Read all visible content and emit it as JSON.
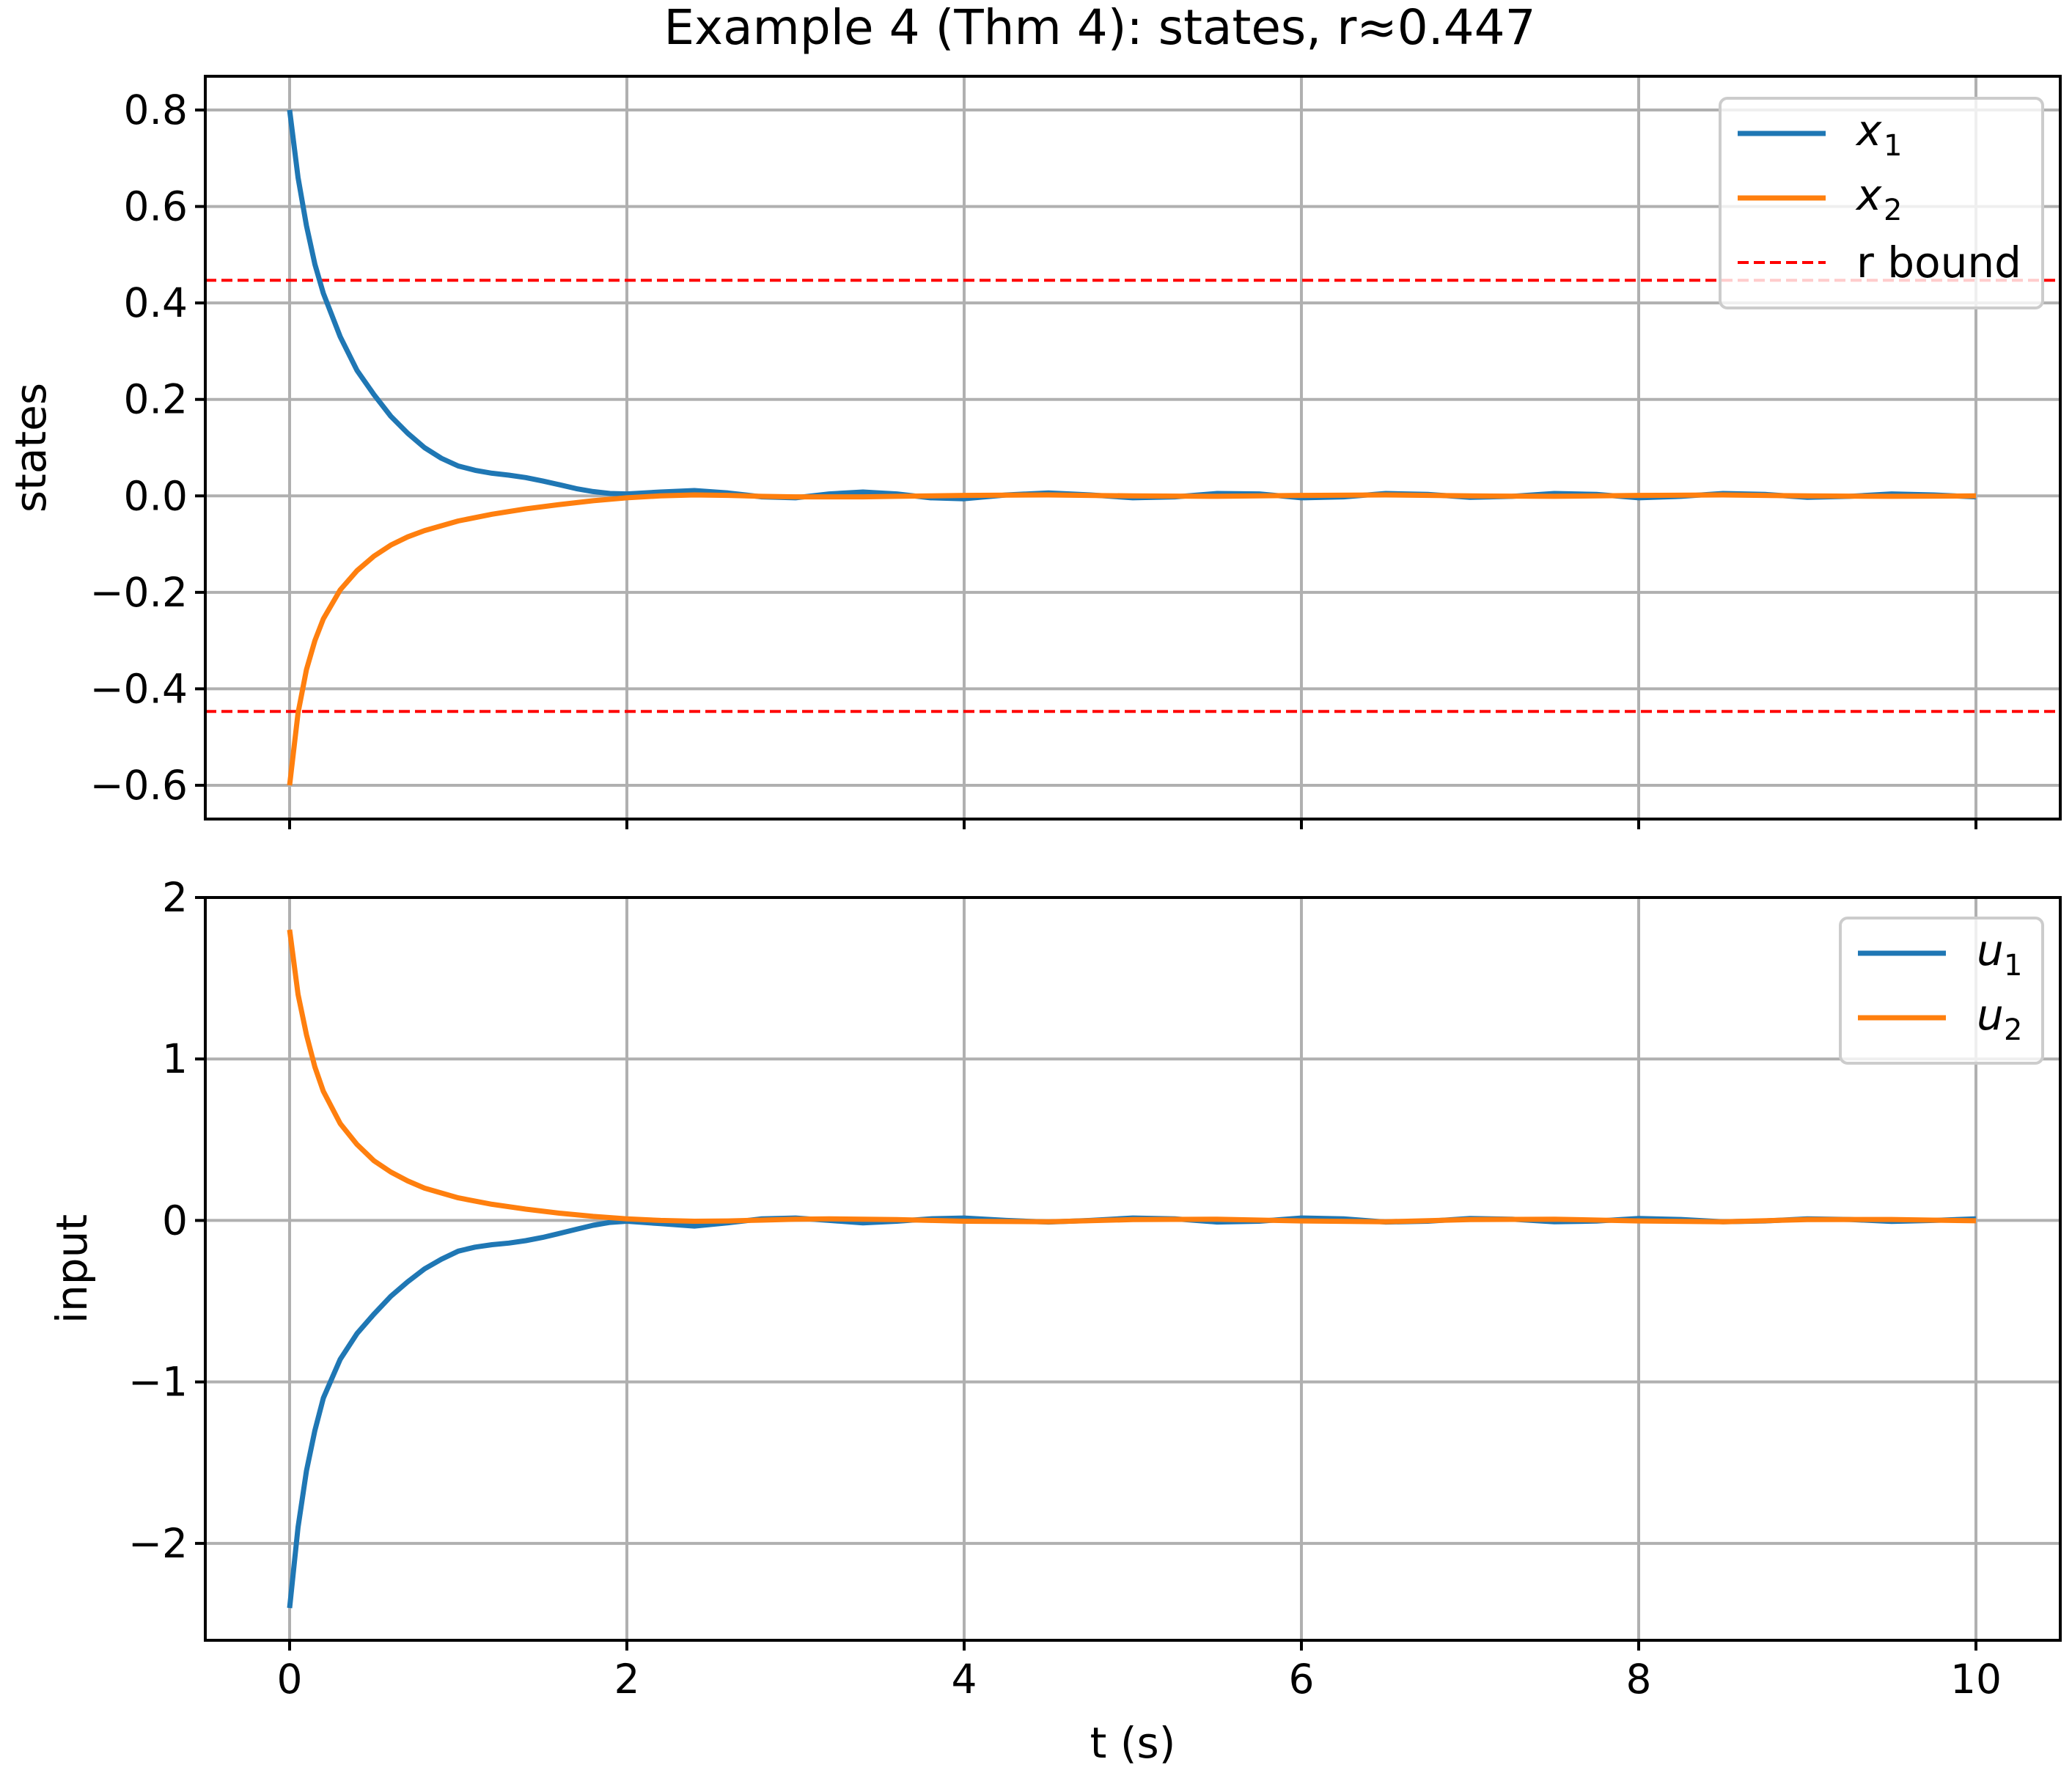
{
  "chart_data": [
    {
      "type": "line",
      "title": "Example 4 (Thm 4): states, r≈0.447",
      "xlabel": "",
      "ylabel": "states",
      "xlim": [
        -0.5,
        10.5
      ],
      "ylim": [
        -0.67,
        0.87
      ],
      "xticks": [
        0,
        2,
        4,
        6,
        8,
        10
      ],
      "yticks": [
        0.8,
        0.6,
        0.4,
        0.2,
        0.0,
        -0.2,
        -0.4,
        -0.6
      ],
      "ytick_labels": [
        "0.8",
        "0.6",
        "0.4",
        "0.2",
        "0.0",
        "−0.2",
        "−0.4",
        "−0.6"
      ],
      "grid": true,
      "legend_position": "top-right",
      "hlines": [
        {
          "name": "r bound",
          "y": 0.447,
          "color": "#ff0000",
          "style": "dashed"
        },
        {
          "name": "r bound",
          "y": -0.447,
          "color": "#ff0000",
          "style": "dashed"
        }
      ],
      "series": [
        {
          "name": "x1",
          "legend_main": "x",
          "legend_sub": "1",
          "color": "#1f77b4",
          "x": [
            0,
            0.05,
            0.1,
            0.15,
            0.2,
            0.3,
            0.4,
            0.5,
            0.6,
            0.7,
            0.8,
            0.9,
            1.0,
            1.1,
            1.2,
            1.3,
            1.4,
            1.5,
            1.6,
            1.7,
            1.8,
            1.9,
            2.0,
            2.2,
            2.4,
            2.6,
            2.8,
            3.0,
            3.2,
            3.4,
            3.6,
            3.8,
            4.0,
            4.25,
            4.5,
            4.75,
            5.0,
            5.25,
            5.5,
            5.75,
            6.0,
            6.25,
            6.5,
            6.75,
            7.0,
            7.25,
            7.5,
            7.75,
            8.0,
            8.25,
            8.5,
            8.75,
            9.0,
            9.25,
            9.5,
            9.75,
            10.0
          ],
          "y": [
            0.8,
            0.66,
            0.56,
            0.48,
            0.42,
            0.33,
            0.26,
            0.21,
            0.165,
            0.13,
            0.1,
            0.078,
            0.062,
            0.053,
            0.047,
            0.043,
            0.038,
            0.031,
            0.023,
            0.015,
            0.009,
            0.005,
            0.004,
            0.008,
            0.011,
            0.006,
            -0.002,
            -0.004,
            0.004,
            0.008,
            0.004,
            -0.004,
            -0.006,
            0.002,
            0.006,
            0.002,
            -0.004,
            -0.002,
            0.005,
            0.004,
            -0.004,
            -0.002,
            0.005,
            0.003,
            -0.003,
            -0.001,
            0.005,
            0.003,
            -0.004,
            -0.001,
            0.005,
            0.003,
            -0.003,
            -0.001,
            0.004,
            0.002,
            -0.002
          ]
        },
        {
          "name": "x2",
          "legend_main": "x",
          "legend_sub": "2",
          "color": "#ff7f0e",
          "x": [
            0,
            0.05,
            0.1,
            0.15,
            0.2,
            0.3,
            0.4,
            0.5,
            0.6,
            0.7,
            0.8,
            1.0,
            1.2,
            1.4,
            1.6,
            1.8,
            2.0,
            2.2,
            2.4,
            2.6,
            2.8,
            3.0,
            3.2,
            3.4,
            3.6,
            3.8,
            4.0,
            4.5,
            5.0,
            5.5,
            6.0,
            6.5,
            7.0,
            7.5,
            8.0,
            8.5,
            9.0,
            9.5,
            10.0
          ],
          "y": [
            -0.6,
            -0.45,
            -0.36,
            -0.3,
            -0.255,
            -0.195,
            -0.155,
            -0.125,
            -0.102,
            -0.085,
            -0.072,
            -0.052,
            -0.038,
            -0.027,
            -0.018,
            -0.01,
            -0.004,
            0.0,
            0.002,
            0.001,
            -0.001,
            -0.002,
            -0.002,
            -0.002,
            -0.001,
            0.0,
            0.001,
            0.002,
            0.0,
            -0.001,
            0.001,
            0.002,
            0.0,
            -0.001,
            0.001,
            0.002,
            0.0,
            -0.001,
            0.0
          ]
        }
      ],
      "legend": [
        {
          "kind": "solid",
          "color": "#1f77b4",
          "main": "x",
          "sub": "1"
        },
        {
          "kind": "solid",
          "color": "#ff7f0e",
          "main": "x",
          "sub": "2"
        },
        {
          "kind": "dashed",
          "color": "#ff0000",
          "label": "r bound"
        }
      ]
    },
    {
      "type": "line",
      "title": "",
      "xlabel": "t (s)",
      "ylabel": "input",
      "xlim": [
        -0.5,
        10.5
      ],
      "ylim": [
        -2.6,
        2.0
      ],
      "xticks": [
        0,
        2,
        4,
        6,
        8,
        10
      ],
      "xtick_labels": [
        "0",
        "2",
        "4",
        "6",
        "8",
        "10"
      ],
      "yticks": [
        2,
        1,
        0,
        -1,
        -2
      ],
      "ytick_labels": [
        "2",
        "1",
        "0",
        "−1",
        "−2"
      ],
      "grid": true,
      "legend_position": "top-right",
      "series": [
        {
          "name": "u1",
          "legend_main": "u",
          "legend_sub": "1",
          "color": "#1f77b4",
          "x": [
            0,
            0.05,
            0.1,
            0.15,
            0.2,
            0.3,
            0.4,
            0.5,
            0.6,
            0.7,
            0.8,
            0.9,
            1.0,
            1.1,
            1.2,
            1.3,
            1.4,
            1.5,
            1.6,
            1.7,
            1.8,
            1.9,
            2.0,
            2.2,
            2.4,
            2.6,
            2.8,
            3.0,
            3.2,
            3.4,
            3.6,
            3.8,
            4.0,
            4.25,
            4.5,
            4.75,
            5.0,
            5.25,
            5.5,
            5.75,
            6.0,
            6.25,
            6.5,
            6.75,
            7.0,
            7.25,
            7.5,
            7.75,
            8.0,
            8.25,
            8.5,
            8.75,
            9.0,
            9.25,
            9.5,
            9.75,
            10.0
          ],
          "y": [
            -2.4,
            -1.9,
            -1.55,
            -1.3,
            -1.1,
            -0.86,
            -0.7,
            -0.58,
            -0.47,
            -0.38,
            -0.3,
            -0.24,
            -0.19,
            -0.165,
            -0.15,
            -0.14,
            -0.125,
            -0.105,
            -0.08,
            -0.055,
            -0.03,
            -0.012,
            -0.005,
            -0.02,
            -0.035,
            -0.015,
            0.01,
            0.015,
            0.0,
            -0.015,
            -0.005,
            0.01,
            0.015,
            0.0,
            -0.01,
            0.0,
            0.015,
            0.01,
            -0.01,
            -0.005,
            0.015,
            0.01,
            -0.01,
            -0.005,
            0.012,
            0.008,
            -0.008,
            -0.004,
            0.012,
            0.006,
            -0.008,
            -0.003,
            0.01,
            0.006,
            -0.006,
            0.0,
            0.01
          ]
        },
        {
          "name": "u2",
          "legend_main": "u",
          "legend_sub": "2",
          "color": "#ff7f0e",
          "x": [
            0,
            0.05,
            0.1,
            0.15,
            0.2,
            0.3,
            0.4,
            0.5,
            0.6,
            0.7,
            0.8,
            1.0,
            1.2,
            1.4,
            1.6,
            1.8,
            2.0,
            2.2,
            2.4,
            2.6,
            2.8,
            3.0,
            3.2,
            3.4,
            3.6,
            3.8,
            4.0,
            4.5,
            5.0,
            5.5,
            6.0,
            6.5,
            7.0,
            7.5,
            8.0,
            8.5,
            9.0,
            9.5,
            10.0
          ],
          "y": [
            1.8,
            1.4,
            1.15,
            0.95,
            0.8,
            0.6,
            0.47,
            0.37,
            0.3,
            0.245,
            0.2,
            0.14,
            0.1,
            0.07,
            0.045,
            0.025,
            0.01,
            0.0,
            -0.005,
            -0.003,
            0.002,
            0.008,
            0.01,
            0.008,
            0.005,
            0.0,
            -0.005,
            -0.008,
            0.005,
            0.008,
            -0.003,
            -0.008,
            0.005,
            0.008,
            -0.003,
            -0.008,
            0.005,
            0.006,
            -0.002
          ]
        }
      ],
      "legend": [
        {
          "kind": "solid",
          "color": "#1f77b4",
          "main": "u",
          "sub": "1"
        },
        {
          "kind": "solid",
          "color": "#ff7f0e",
          "main": "u",
          "sub": "2"
        }
      ]
    }
  ]
}
